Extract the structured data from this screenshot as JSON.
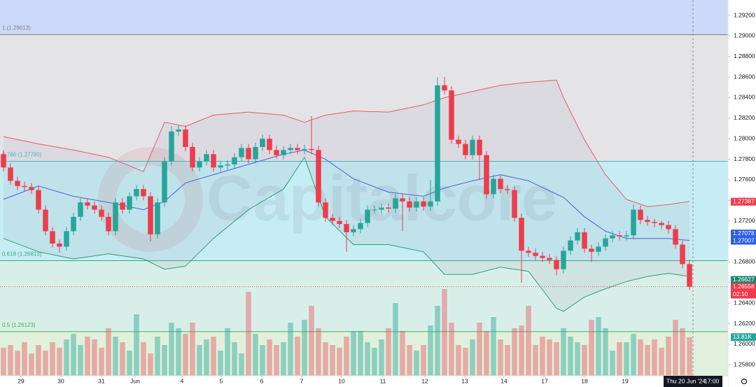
{
  "chart_data": {
    "type": "candlestick",
    "xlim": [
      -0.5,
      103.5
    ],
    "ylim": [
      1.25693,
      1.2935
    ],
    "yticks": [
      {
        "value": 1.292,
        "label": "1.29200"
      },
      {
        "value": 1.29,
        "label": "1.29000"
      },
      {
        "value": 1.288,
        "label": "1.28800"
      },
      {
        "value": 1.286,
        "label": "1.28600"
      },
      {
        "value": 1.284,
        "label": "1.28400"
      },
      {
        "value": 1.282,
        "label": "1.28200"
      },
      {
        "value": 1.28,
        "label": "1.28000"
      },
      {
        "value": 1.278,
        "label": "1.27800"
      },
      {
        "value": 1.276,
        "label": "1.27600"
      },
      {
        "value": 1.274,
        "label": "1.27400"
      },
      {
        "value": 1.272,
        "label": "1.27200"
      },
      {
        "value": 1.27,
        "label": "1.27000"
      },
      {
        "value": 1.268,
        "label": "1.26800"
      },
      {
        "value": 1.266,
        "label": "1.26600"
      },
      {
        "value": 1.264,
        "label": "1.26400"
      },
      {
        "value": 1.262,
        "label": "1.26200"
      },
      {
        "value": 1.26,
        "label": "1.26000"
      },
      {
        "value": 1.258,
        "label": "1.25800"
      }
    ],
    "xticks": [
      {
        "value": 2.5,
        "label": "29"
      },
      {
        "value": 8.2,
        "label": "30"
      },
      {
        "value": 14,
        "label": "31"
      },
      {
        "value": 18.8,
        "label": "Jun"
      },
      {
        "value": 25.5,
        "label": "4"
      },
      {
        "value": 31.1,
        "label": "5"
      },
      {
        "value": 36.9,
        "label": "6"
      },
      {
        "value": 42.6,
        "label": "7"
      },
      {
        "value": 48.3,
        "label": "10"
      },
      {
        "value": 54.2,
        "label": "11"
      },
      {
        "value": 60.2,
        "label": "12"
      },
      {
        "value": 65.9,
        "label": "13"
      },
      {
        "value": 71.5,
        "label": "14"
      },
      {
        "value": 77.3,
        "label": "17"
      },
      {
        "value": 83,
        "label": "18"
      },
      {
        "value": 88.8,
        "label": "19"
      }
    ],
    "up_color": "#26a69a",
    "down_color": "#ef3b4b",
    "open": [
      1.2785,
      1.2772,
      1.2759,
      1.2754,
      1.2753,
      1.275,
      1.2731,
      1.271,
      1.2698,
      1.2695,
      1.271,
      1.2724,
      1.2738,
      1.2735,
      1.2731,
      1.2724,
      1.271,
      1.2738,
      1.2731,
      1.2744,
      1.2751,
      1.2744,
      1.2707,
      1.2738,
      1.2778,
      1.2807,
      1.2809,
      1.2792,
      1.2772,
      1.2778,
      1.2785,
      1.2772,
      1.2774,
      1.2775,
      1.2782,
      1.2791,
      1.278,
      1.2792,
      1.28,
      1.2789,
      1.2784,
      1.2789,
      1.2791,
      1.2789,
      1.279,
      1.2789,
      1.2738,
      1.2723,
      1.272,
      1.2717,
      1.2709,
      1.2712,
      1.2718,
      1.2731,
      1.2731,
      1.2733,
      1.2732,
      1.2742,
      1.2739,
      1.2733,
      1.2739,
      1.2734,
      1.2739,
      1.2852,
      1.2847,
      1.2799,
      1.2795,
      1.2784,
      1.2799,
      1.2784,
      1.2746,
      1.2761,
      1.2751,
      1.275,
      1.2723,
      1.2691,
      1.2689,
      1.2686,
      1.2684,
      1.2682,
      1.2673,
      1.2691,
      1.2701,
      1.2709,
      1.2693,
      1.269,
      1.2695,
      1.2703,
      1.2706,
      1.2705,
      1.2706,
      1.2731,
      1.2721,
      1.2719,
      1.2718,
      1.2716,
      1.2712,
      1.2697,
      1.2678
    ],
    "high": [
      1.2789,
      1.2776,
      1.2763,
      1.2758,
      1.2757,
      1.2754,
      1.2735,
      1.2714,
      1.2702,
      1.2714,
      1.2728,
      1.2742,
      1.2742,
      1.2739,
      1.2735,
      1.2728,
      1.2742,
      1.2742,
      1.2748,
      1.2755,
      1.2755,
      1.2748,
      1.2742,
      1.2782,
      1.2812,
      1.2813,
      1.2813,
      1.2796,
      1.2782,
      1.2789,
      1.2789,
      1.2778,
      1.2779,
      1.2786,
      1.2795,
      1.2795,
      1.2796,
      1.2804,
      1.2804,
      1.2793,
      1.2793,
      1.2795,
      1.2795,
      1.2794,
      1.2822,
      1.2793,
      1.2742,
      1.2727,
      1.2724,
      1.2721,
      1.2716,
      1.2722,
      1.2735,
      1.2735,
      1.2737,
      1.2737,
      1.2746,
      1.2746,
      1.2743,
      1.2743,
      1.2743,
      1.276,
      1.286,
      1.286,
      1.2851,
      1.2803,
      1.2799,
      1.2803,
      1.2803,
      1.2788,
      1.2765,
      1.2765,
      1.2755,
      1.2754,
      1.2727,
      1.2695,
      1.2693,
      1.269,
      1.2688,
      1.2686,
      1.2695,
      1.2705,
      1.2713,
      1.2713,
      1.2697,
      1.2699,
      1.2707,
      1.271,
      1.271,
      1.271,
      1.2736,
      1.2735,
      1.2725,
      1.2722,
      1.272,
      1.272,
      1.2716,
      1.2701,
      1.2682
    ],
    "low": [
      1.2768,
      1.2755,
      1.275,
      1.2749,
      1.2746,
      1.2727,
      1.2706,
      1.2694,
      1.2689,
      1.2691,
      1.2706,
      1.272,
      1.2731,
      1.2727,
      1.272,
      1.2706,
      1.2706,
      1.2727,
      1.2727,
      1.274,
      1.274,
      1.27,
      1.2703,
      1.2734,
      1.2774,
      1.2803,
      1.2788,
      1.2768,
      1.2768,
      1.2774,
      1.2768,
      1.2768,
      1.277,
      1.2771,
      1.2778,
      1.2776,
      1.2776,
      1.2788,
      1.2785,
      1.278,
      1.278,
      1.2785,
      1.2785,
      1.2785,
      1.2785,
      1.2734,
      1.2719,
      1.2716,
      1.2713,
      1.269,
      1.2705,
      1.2708,
      1.2714,
      1.2727,
      1.2727,
      1.2728,
      1.2728,
      1.271,
      1.2729,
      1.2729,
      1.273,
      1.273,
      1.2735,
      1.2843,
      1.2795,
      1.2791,
      1.278,
      1.278,
      1.276,
      1.2742,
      1.2742,
      1.2747,
      1.2746,
      1.2719,
      1.266,
      1.2685,
      1.2682,
      1.268,
      1.2678,
      1.2667,
      1.2669,
      1.2687,
      1.2697,
      1.2689,
      1.268,
      1.2686,
      1.2691,
      1.2699,
      1.2701,
      1.2701,
      1.2702,
      1.2717,
      1.2715,
      1.2714,
      1.2712,
      1.2708,
      1.2693,
      1.2674,
      1.2653
    ],
    "close": [
      1.2772,
      1.2759,
      1.2754,
      1.2753,
      1.275,
      1.2731,
      1.271,
      1.2698,
      1.2695,
      1.271,
      1.2724,
      1.2738,
      1.2735,
      1.2731,
      1.2724,
      1.271,
      1.2738,
      1.2731,
      1.2744,
      1.2751,
      1.2744,
      1.2707,
      1.2738,
      1.2778,
      1.2807,
      1.2809,
      1.2792,
      1.2772,
      1.2778,
      1.2785,
      1.2772,
      1.2774,
      1.2775,
      1.2782,
      1.2791,
      1.278,
      1.2792,
      1.28,
      1.2789,
      1.2784,
      1.2789,
      1.2791,
      1.2789,
      1.279,
      1.2789,
      1.2738,
      1.2723,
      1.272,
      1.2717,
      1.2709,
      1.2712,
      1.2718,
      1.2731,
      1.2731,
      1.2733,
      1.2732,
      1.2742,
      1.2739,
      1.2733,
      1.2739,
      1.2734,
      1.2739,
      1.2852,
      1.2847,
      1.2799,
      1.2795,
      1.2784,
      1.2799,
      1.2784,
      1.2746,
      1.2761,
      1.2751,
      1.275,
      1.2723,
      1.2691,
      1.2689,
      1.2686,
      1.2684,
      1.2682,
      1.2673,
      1.2691,
      1.2701,
      1.2709,
      1.2693,
      1.269,
      1.2695,
      1.2703,
      1.2706,
      1.2705,
      1.2706,
      1.2731,
      1.2721,
      1.2719,
      1.2718,
      1.2716,
      1.2712,
      1.2697,
      1.2678,
      1.2656
    ],
    "volume": [
      10000,
      11000,
      9000,
      12000,
      8000,
      11000,
      9000,
      12000,
      10000,
      13000,
      15000,
      11000,
      14000,
      13000,
      10000,
      17000,
      14000,
      12000,
      9000,
      22000,
      12000,
      8000,
      14000,
      11000,
      19000,
      17000,
      15000,
      19000,
      11000,
      13000,
      14000,
      9000,
      17000,
      12000,
      8000,
      30000,
      15000,
      11000,
      13000,
      11000,
      12000,
      19000,
      14000,
      20000,
      25000,
      17000,
      12000,
      11000,
      10000,
      14000,
      16000,
      16000,
      12000,
      10000,
      13000,
      17000,
      26000,
      16000,
      11000,
      9000,
      11000,
      18000,
      25000,
      31000,
      19000,
      11000,
      10000,
      13000,
      19000,
      16000,
      21000,
      13000,
      11000,
      17000,
      18000,
      25000,
      11000,
      14000,
      13000,
      12000,
      17000,
      14000,
      12000,
      11000,
      20000,
      21000,
      17000,
      9000,
      12000,
      12000,
      15000,
      13000,
      11000,
      13000,
      10000,
      14000,
      20000,
      17000,
      13810
    ],
    "volume_ylim": [
      0,
      40000
    ],
    "volume_label": {
      "value": 13810,
      "label": "13.81K",
      "color": "#26a69a"
    },
    "bands": {
      "x": [
        0,
        5,
        10,
        15,
        20,
        23,
        26,
        30,
        35,
        40,
        43,
        46,
        50,
        55,
        60,
        63,
        67,
        71,
        75,
        79,
        80,
        83,
        86,
        89,
        92,
        95,
        98
      ],
      "upper": [
        1.2802,
        1.2795,
        1.2789,
        1.2782,
        1.2768,
        1.2816,
        1.2812,
        1.2823,
        1.2826,
        1.2823,
        1.2816,
        1.2823,
        1.2827,
        1.2826,
        1.2833,
        1.284,
        1.2846,
        1.2852,
        1.2855,
        1.2857,
        1.284,
        1.2799,
        1.2765,
        1.2741,
        1.2734,
        1.2736,
        1.2739
      ],
      "middle": [
        1.2741,
        1.2754,
        1.2744,
        1.2738,
        1.2731,
        1.2739,
        1.2757,
        1.2765,
        1.2775,
        1.2785,
        1.2789,
        1.278,
        1.2761,
        1.2748,
        1.2744,
        1.2752,
        1.2759,
        1.2765,
        1.2759,
        1.2746,
        1.2743,
        1.2724,
        1.271,
        1.2703,
        1.2703,
        1.2703,
        1.2701
      ],
      "lower": [
        1.2703,
        1.269,
        1.2683,
        1.2688,
        1.2683,
        1.2673,
        1.2676,
        1.2703,
        1.2731,
        1.2751,
        1.2782,
        1.2724,
        1.2697,
        1.2697,
        1.269,
        1.2668,
        1.2668,
        1.2675,
        1.2671,
        1.2635,
        1.2632,
        1.2646,
        1.2654,
        1.2661,
        1.2666,
        1.2669,
        1.2666
      ],
      "upper_color": "#e35d6a",
      "middle_color": "#4c63d2",
      "lower_color": "#2e9e74"
    },
    "fib_levels": [
      {
        "value": 1.29013,
        "label": "1 (1.29013)",
        "color": "#7d7f8c",
        "fill_above": "#cdd9fa"
      },
      {
        "value": 1.2778,
        "label": "0.786 (1.27780)",
        "color": "#3fb8c8",
        "fill_above": "#e4e4e7"
      },
      {
        "value": 1.26813,
        "label": "0.618 (1.26813)",
        "color": "#3aa58a",
        "fill_above": "#c6edf4"
      },
      {
        "value": 1.26123,
        "label": "0.5 (1.26123)",
        "color": "#4caf50",
        "fill_above": "#d8efe9"
      }
    ],
    "fill_below": "#e1f0dc",
    "price_labels": [
      {
        "value": 1.27387,
        "label": "1.27387",
        "color": "#ef3b4b"
      },
      {
        "value": 1.27078,
        "label": "1.27078",
        "color": "#2f5fe0"
      },
      {
        "value": 1.27007,
        "label": "1.27007",
        "color": "#2f5fe0"
      },
      {
        "value": 1.26627,
        "label": "1.26627",
        "color": "#1f8a70"
      },
      {
        "value": 1.26558,
        "label": "1.26558",
        "color": "#ef3b4b",
        "countdown": "02:10"
      }
    ],
    "crosshair": {
      "x": 98.5,
      "label": "Thu 20 Jun '24",
      "time": "17:00"
    },
    "watermark": "Capitalcore"
  }
}
